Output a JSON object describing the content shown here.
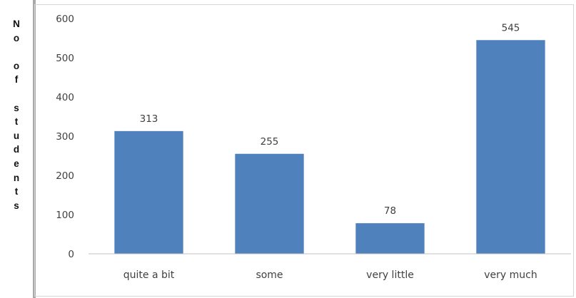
{
  "chart_data": {
    "type": "bar",
    "title": "",
    "xlabel": "",
    "ylabel": "No of students",
    "categories": [
      "quite a bit",
      "some",
      "very little",
      "very much"
    ],
    "values": [
      313,
      255,
      78,
      545
    ],
    "data_labels": [
      "313",
      "255",
      "78",
      "545"
    ],
    "ylim": [
      0,
      600
    ],
    "yticks": [
      "0",
      "100",
      "200",
      "300",
      "400",
      "500",
      "600"
    ],
    "grid": false,
    "legend": "none",
    "colors": {
      "bar": "#4f81bd",
      "axis": "#c0c0c0",
      "text": "#404040"
    }
  }
}
